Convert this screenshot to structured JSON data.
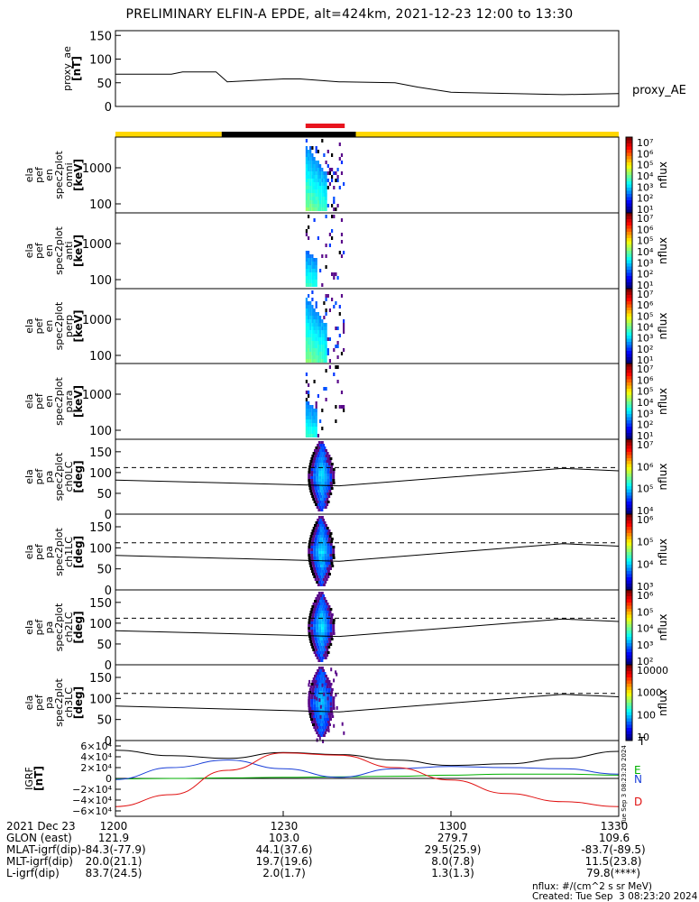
{
  "title": "PRELIMINARY ELFIN-A EPDE, alt=424km, 2021-12-23 12:00 to 13:30",
  "colors": {
    "bar_yellow": "#ffd700",
    "bar_black": "#000000",
    "bar_red": "#e8141e",
    "igrf_x": "#000000",
    "igrf_y": "#00b000",
    "igrf_z": "#1a3fd8",
    "igrf_d": "#e01010"
  },
  "panels": [
    {
      "id": "proxy_ae",
      "ylabel": [
        "proxy_ae",
        "[nT]"
      ],
      "right_label": "proxy_AE",
      "yticks": [
        "150",
        "100",
        "50",
        "0"
      ]
    },
    {
      "id": "spec_omni",
      "ylabel": [
        "ela",
        "pef",
        "en",
        "spec2plot",
        "omni",
        "[keV]"
      ],
      "yticks": [
        "1000",
        "100"
      ],
      "cbar_label": "nflux",
      "cbar_ticks": [
        "10⁷",
        "10⁶",
        "10⁵",
        "10⁴",
        "10³",
        "10²",
        "10¹"
      ]
    },
    {
      "id": "spec_anti",
      "ylabel": [
        "ela",
        "pef",
        "en",
        "spec2plot",
        "anti",
        "[keV]"
      ],
      "yticks": [
        "1000",
        "100"
      ],
      "cbar_label": "nflux",
      "cbar_ticks": [
        "10⁷",
        "10⁶",
        "10⁵",
        "10⁴",
        "10³",
        "10²",
        "10¹"
      ]
    },
    {
      "id": "spec_perp",
      "ylabel": [
        "ela",
        "pef",
        "en",
        "spec2plot",
        "perp",
        "[keV]"
      ],
      "yticks": [
        "1000",
        "100"
      ],
      "cbar_label": "nflux",
      "cbar_ticks": [
        "10⁷",
        "10⁶",
        "10⁵",
        "10⁴",
        "10³",
        "10²",
        "10¹"
      ]
    },
    {
      "id": "spec_para",
      "ylabel": [
        "ela",
        "pef",
        "en",
        "spec2plot",
        "para",
        "[keV]"
      ],
      "yticks": [
        "1000",
        "100"
      ],
      "cbar_label": "nflux",
      "cbar_ticks": [
        "10⁷",
        "10⁶",
        "10⁵",
        "10⁴",
        "10³",
        "10²",
        "10¹"
      ]
    },
    {
      "id": "pa_ch0",
      "ylabel": [
        "ela",
        "pef",
        "pa",
        "spec2plot",
        "ch0LC",
        "[deg]"
      ],
      "yticks": [
        "150",
        "100",
        "50",
        "0"
      ],
      "cbar_label": "nflux",
      "cbar_ticks": [
        "10⁷",
        "10⁶",
        "10⁵",
        "10⁴"
      ]
    },
    {
      "id": "pa_ch1",
      "ylabel": [
        "ela",
        "pef",
        "pa",
        "spec2plot",
        "ch1LC",
        "[deg]"
      ],
      "yticks": [
        "150",
        "100",
        "50",
        "0"
      ],
      "cbar_label": "nflux",
      "cbar_ticks": [
        "10⁶",
        "10⁵",
        "10⁴",
        "10³"
      ]
    },
    {
      "id": "pa_ch2",
      "ylabel": [
        "ela",
        "pef",
        "pa",
        "spec2plot",
        "ch2LC",
        "[deg]"
      ],
      "yticks": [
        "150",
        "100",
        "50",
        "0"
      ],
      "cbar_label": "nflux",
      "cbar_ticks": [
        "10⁶",
        "10⁵",
        "10⁴",
        "10³",
        "10²"
      ]
    },
    {
      "id": "pa_ch3",
      "ylabel": [
        "ela",
        "pef",
        "pa",
        "spec2plot",
        "ch3LC",
        "[deg]"
      ],
      "yticks": [
        "150",
        "100",
        "50",
        "0"
      ],
      "cbar_label": "nflux",
      "cbar_ticks": [
        "10000",
        "1000",
        "100",
        "10"
      ]
    },
    {
      "id": "igrf",
      "ylabel": [
        "IGRF",
        "[nT]"
      ],
      "yticks": [
        "6×10⁴",
        "4×10⁴",
        "2×10⁴",
        "0",
        "−2×10⁴",
        "−4×10⁴",
        "−6×10⁴"
      ],
      "legend": [
        "T",
        "E",
        "N",
        "D"
      ]
    }
  ],
  "chart_data": {
    "type": "line",
    "x_range": [
      "12:00",
      "13:30"
    ],
    "proxy_ae": {
      "x": [
        "12:00",
        "12:10",
        "12:12",
        "12:18",
        "12:20",
        "12:30",
        "12:33",
        "12:40",
        "12:50",
        "12:54",
        "13:00",
        "13:20",
        "13:30"
      ],
      "y": [
        68,
        68,
        73,
        73,
        52,
        58,
        58,
        52,
        50,
        41,
        30,
        25,
        27
      ],
      "ylim": [
        0,
        160
      ]
    },
    "science_zone": {
      "start": "12:34",
      "end": "12:41"
    },
    "orbit_bar": [
      {
        "start": "12:00",
        "end": "12:19",
        "color": "yellow"
      },
      {
        "start": "12:19",
        "end": "12:43",
        "color": "black"
      },
      {
        "start": "12:43",
        "end": "13:30",
        "color": "yellow"
      }
    ],
    "pa_reference_lines": {
      "dashed_deg": 112,
      "solid_deg": [
        {
          "x": "12:00",
          "y": 82
        },
        {
          "x": "12:40",
          "y": 68
        },
        {
          "x": "13:20",
          "y": 110
        },
        {
          "x": "13:30",
          "y": 104
        }
      ]
    },
    "igrf": {
      "x": [
        "12:00",
        "12:10",
        "12:20",
        "12:30",
        "12:40",
        "12:50",
        "13:00",
        "13:10",
        "13:20",
        "13:30"
      ],
      "series": [
        {
          "name": "T",
          "values": [
            52000,
            42000,
            37000,
            48000,
            44000,
            34000,
            24000,
            27000,
            37000,
            50000
          ]
        },
        {
          "name": "E",
          "values": [
            -1000,
            0,
            1000,
            2000,
            3000,
            4000,
            6000,
            8000,
            8000,
            6000
          ]
        },
        {
          "name": "N",
          "values": [
            -2000,
            20000,
            34000,
            18000,
            2000,
            18000,
            22000,
            20000,
            18000,
            8000
          ]
        },
        {
          "name": "D",
          "values": [
            -52000,
            -30000,
            15000,
            47000,
            43000,
            20000,
            -3000,
            -28000,
            -43000,
            -52000
          ]
        }
      ],
      "ylim": [
        -70000,
        70000
      ]
    }
  },
  "ephemeris": {
    "date_label": "2021 Dec 23",
    "times": [
      "1200",
      "1230",
      "1300",
      "1330"
    ],
    "rows": [
      {
        "label": "GLON (east)",
        "values": [
          "121.9",
          "103.0",
          "279.7",
          "109.6"
        ]
      },
      {
        "label": "MLAT-igrf(dip)",
        "values": [
          "-84.3(-77.9)",
          "44.1(37.6)",
          "29.5(25.9)",
          "-83.7(-89.5)"
        ]
      },
      {
        "label": "MLT-igrf(dip)",
        "values": [
          "20.0(21.1)",
          "19.7(19.6)",
          "8.0(7.8)",
          "11.5(23.8)"
        ]
      },
      {
        "label": "L-igrf(dip)",
        "values": [
          "83.7(24.5)",
          "2.0(1.7)",
          "1.3(1.3)",
          "79.8(****)"
        ]
      }
    ]
  },
  "footer": {
    "nflux_units": "nflux: #/(cm^2 s sr MeV)",
    "created": "Created: Tue Sep  3 08:23:20 2024",
    "side_stamp": "Tue Sep  3 08:23:20 2024"
  }
}
